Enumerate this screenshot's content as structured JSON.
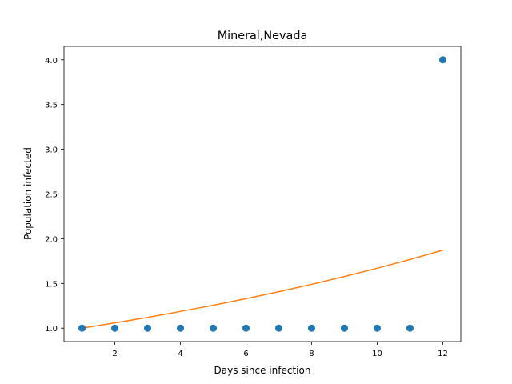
{
  "chart_data": {
    "type": "scatter",
    "title": "Mineral,Nevada",
    "xlabel": "Days since infection",
    "ylabel": "Population infected",
    "xlim": [
      0.45,
      12.55
    ],
    "ylim": [
      0.85,
      4.15
    ],
    "xticks": [
      2,
      4,
      6,
      8,
      10,
      12
    ],
    "yticks": [
      1.0,
      1.5,
      2.0,
      2.5,
      3.0,
      3.5,
      4.0
    ],
    "grid": false,
    "series": [
      {
        "type": "scatter",
        "color": "#1f77b4",
        "x": [
          1,
          2,
          3,
          4,
          5,
          6,
          7,
          8,
          9,
          10,
          11,
          12
        ],
        "y": [
          1,
          1,
          1,
          1,
          1,
          1,
          1,
          1,
          1,
          1,
          1,
          4
        ]
      },
      {
        "type": "line",
        "color": "#ff7f0e",
        "x": [
          1,
          2,
          3,
          4,
          5,
          6,
          7,
          8,
          9,
          10,
          11,
          12
        ],
        "y": [
          1.0,
          1.059,
          1.121,
          1.187,
          1.256,
          1.33,
          1.408,
          1.49,
          1.578,
          1.67,
          1.768,
          1.872
        ]
      }
    ]
  }
}
